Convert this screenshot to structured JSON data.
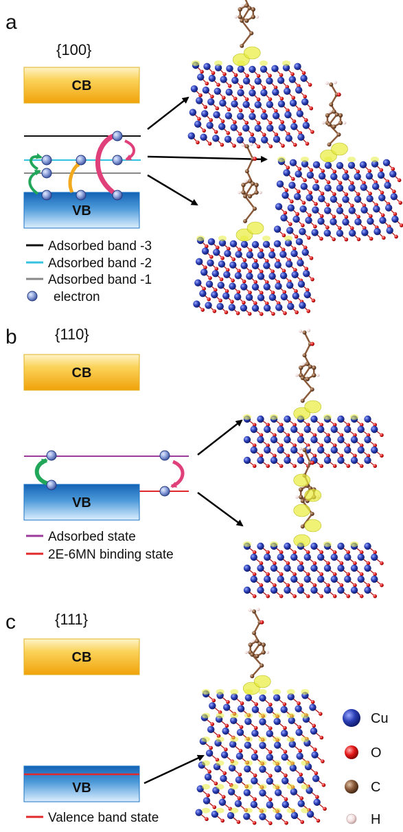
{
  "panels": [
    {
      "letter": "a",
      "facet": "{100}",
      "cb_label": "CB",
      "vb_label": "VB",
      "legend": [
        {
          "label": "Adsorbed band -3",
          "color": "#111111"
        },
        {
          "label": "Adsorbed band -2",
          "color": "#33c3e0"
        },
        {
          "label": "Adsorbed band -1",
          "color": "#888888"
        },
        {
          "label": "electron",
          "color": "#6f86c9"
        }
      ]
    },
    {
      "letter": "b",
      "facet": "{110}",
      "cb_label": "CB",
      "vb_label": "VB",
      "legend": [
        {
          "label": "Adsorbed state",
          "color": "#9b3a9b"
        },
        {
          "label": "2E-6MN binding state",
          "color": "#e0282a"
        }
      ]
    },
    {
      "letter": "c",
      "facet": "{111}",
      "cb_label": "CB",
      "vb_label": "VB",
      "legend": [
        {
          "label": "Valence band state",
          "color": "#e0282a"
        }
      ]
    }
  ],
  "elements": [
    {
      "symbol": "Cu",
      "color": "#2c3ea8"
    },
    {
      "symbol": "O",
      "color": "#e01f1f"
    },
    {
      "symbol": "C",
      "color": "#8a5a3a"
    },
    {
      "symbol": "H",
      "color": "#f1dcdc"
    }
  ],
  "colors": {
    "cb_top": "#fde7a0",
    "cb_bottom": "#f2a40c",
    "vb_top": "#1a72c4",
    "vb_bottom": "#d9ecfa",
    "isosurface": "#e8ec3a",
    "arrow_green": "#21a65a",
    "arrow_orange": "#f2a91e",
    "arrow_pink": "#e0407a"
  }
}
